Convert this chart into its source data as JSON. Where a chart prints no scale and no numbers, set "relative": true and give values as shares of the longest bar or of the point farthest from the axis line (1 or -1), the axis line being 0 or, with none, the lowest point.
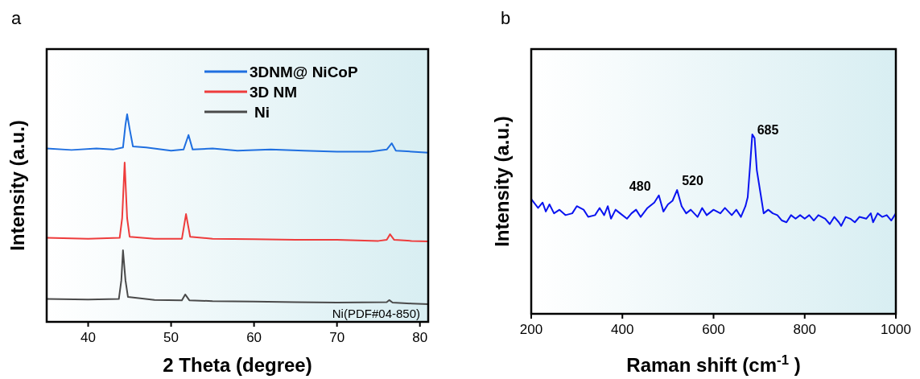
{
  "chart_data": [
    {
      "type": "line",
      "title": "a",
      "xlabel": "2 Theta (degree)",
      "ylabel": "Intensity (a.u.)",
      "relative": true,
      "xlim": [
        35,
        81
      ],
      "xticks": [
        40,
        50,
        60,
        70,
        80
      ],
      "legend": "top right",
      "grid": false,
      "annotations": [
        "Ni(PDF#04-850)"
      ],
      "series": [
        {
          "name": "3DNM@ NiCoP",
          "color": "#1f6fe0",
          "x": [
            35,
            38,
            41,
            43,
            44.2,
            44.5,
            44.7,
            45.0,
            45.4,
            47,
            50,
            51.5,
            52.1,
            52.6,
            55,
            58,
            62,
            66,
            70,
            74,
            76,
            76.6,
            77.1,
            79,
            81
          ],
          "values": [
            0.835,
            0.828,
            0.835,
            0.83,
            0.84,
            0.95,
            1.0,
            0.93,
            0.845,
            0.84,
            0.825,
            0.83,
            0.9,
            0.83,
            0.835,
            0.825,
            0.83,
            0.825,
            0.82,
            0.82,
            0.83,
            0.86,
            0.825,
            0.82,
            0.815
          ]
        },
        {
          "name": "3D NM",
          "color": "#ee3c3c",
          "x": [
            35,
            40,
            43.8,
            44.1,
            44.4,
            44.7,
            45,
            48,
            51.3,
            51.8,
            52.3,
            55,
            60,
            65,
            70,
            75,
            76,
            76.4,
            76.9,
            79,
            81
          ],
          "values": [
            0.405,
            0.4,
            0.405,
            0.5,
            0.767,
            0.5,
            0.41,
            0.4,
            0.4,
            0.519,
            0.41,
            0.4,
            0.398,
            0.395,
            0.395,
            0.39,
            0.395,
            0.422,
            0.395,
            0.39,
            0.388
          ]
        },
        {
          "name": "Ni",
          "color": "#4a4a4a",
          "x": [
            35,
            40,
            43.7,
            44.0,
            44.2,
            44.5,
            44.8,
            48,
            51.3,
            51.7,
            52.2,
            55,
            60,
            65,
            70,
            76,
            76.3,
            76.7,
            79,
            81
          ],
          "values": [
            0.11,
            0.108,
            0.11,
            0.2,
            0.345,
            0.2,
            0.12,
            0.106,
            0.104,
            0.132,
            0.104,
            0.1,
            0.098,
            0.095,
            0.093,
            0.095,
            0.105,
            0.093,
            0.088,
            0.085
          ]
        }
      ]
    },
    {
      "type": "line",
      "title": "b",
      "xlabel": "Raman shift (cm$^{-1}$ )",
      "ylabel": "Intensity (a.u.)",
      "relative": true,
      "xlim": [
        200,
        1000
      ],
      "xticks": [
        200,
        400,
        600,
        800,
        1000
      ],
      "legend": false,
      "grid": false,
      "annotations": [
        {
          "text": "480",
          "x": 480,
          "y": 0.66
        },
        {
          "text": "520",
          "x": 520,
          "y": 0.69
        },
        {
          "text": "685",
          "x": 685,
          "y": 1.0
        }
      ],
      "series": [
        {
          "color": "#0a14f0",
          "x": [
            200,
            215,
            225,
            232,
            240,
            250,
            262,
            275,
            290,
            300,
            315,
            325,
            340,
            350,
            360,
            368,
            375,
            385,
            395,
            410,
            420,
            430,
            440,
            455,
            470,
            480,
            490,
            500,
            510,
            520,
            530,
            540,
            550,
            565,
            575,
            585,
            600,
            615,
            625,
            640,
            650,
            660,
            670,
            675,
            680,
            685,
            690,
            695,
            705,
            710,
            720,
            730,
            740,
            750,
            760,
            770,
            780,
            790,
            800,
            810,
            820,
            830,
            845,
            855,
            865,
            875,
            880,
            890,
            900,
            910,
            920,
            935,
            945,
            950,
            960,
            970,
            980,
            990,
            1000
          ],
          "values": [
            0.64,
            0.59,
            0.62,
            0.57,
            0.61,
            0.56,
            0.58,
            0.55,
            0.56,
            0.6,
            0.58,
            0.54,
            0.55,
            0.59,
            0.55,
            0.6,
            0.53,
            0.58,
            0.56,
            0.53,
            0.56,
            0.58,
            0.54,
            0.59,
            0.62,
            0.66,
            0.57,
            0.61,
            0.63,
            0.69,
            0.6,
            0.56,
            0.58,
            0.54,
            0.59,
            0.55,
            0.58,
            0.56,
            0.59,
            0.55,
            0.58,
            0.54,
            0.6,
            0.65,
            0.82,
            1.0,
            0.98,
            0.8,
            0.64,
            0.56,
            0.58,
            0.56,
            0.55,
            0.52,
            0.51,
            0.55,
            0.53,
            0.55,
            0.53,
            0.55,
            0.52,
            0.55,
            0.53,
            0.5,
            0.54,
            0.51,
            0.49,
            0.54,
            0.53,
            0.51,
            0.54,
            0.53,
            0.56,
            0.51,
            0.56,
            0.54,
            0.55,
            0.52,
            0.56
          ]
        }
      ]
    }
  ]
}
